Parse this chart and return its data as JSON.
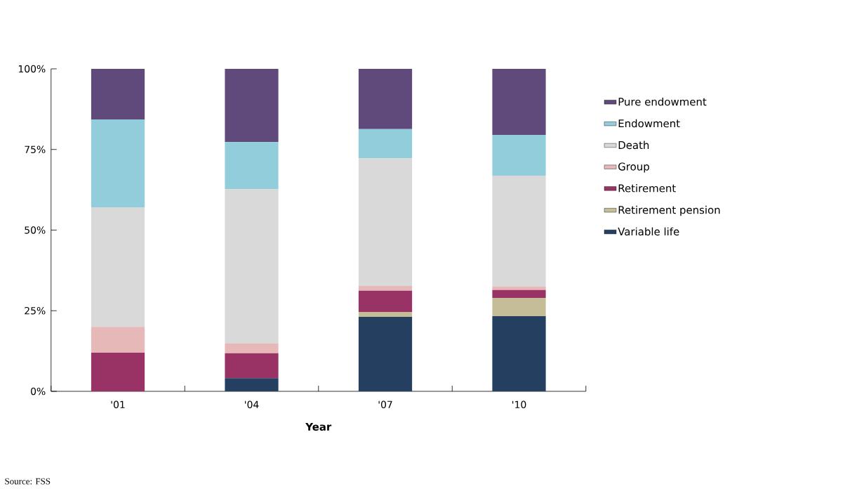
{
  "chart_data": {
    "type": "bar",
    "stacked": true,
    "categories": [
      "'01",
      "'04",
      "'07",
      "'10"
    ],
    "xlabel": "Year",
    "series": [
      {
        "name": "Variable life",
        "color": "#243f60",
        "values": [
          0,
          4.1,
          23.1,
          23.3
        ]
      },
      {
        "name": "Retirement pension",
        "color": "#c4bd97",
        "values": [
          0,
          0,
          1.5,
          5.7
        ]
      },
      {
        "name": "Retirement",
        "color": "#993366",
        "values": [
          12.0,
          7.7,
          6.6,
          2.4
        ]
      },
      {
        "name": "Group",
        "color": "#e6b9b8",
        "values": [
          8.0,
          3.0,
          1.5,
          1.1
        ]
      },
      {
        "name": "Death",
        "color": "#d9d9d9",
        "values": [
          37.1,
          47.9,
          39.6,
          34.4
        ]
      },
      {
        "name": "Endowment",
        "color": "#92cddc",
        "values": [
          27.2,
          14.6,
          9.0,
          12.6
        ]
      },
      {
        "name": "Pure endowment",
        "color": "#604a7b",
        "values": [
          15.7,
          22.7,
          18.7,
          20.5
        ]
      }
    ],
    "ylim": [
      0,
      100
    ],
    "yticks": [
      {
        "value": 0,
        "label": "0%"
      },
      {
        "value": 25,
        "label": "25%"
      },
      {
        "value": 50,
        "label": "50%"
      },
      {
        "value": 75,
        "label": "75%"
      },
      {
        "value": 100,
        "label": "100%"
      }
    ],
    "legend": "right",
    "grid": false,
    "annotations": [
      "Source: FSS"
    ]
  }
}
